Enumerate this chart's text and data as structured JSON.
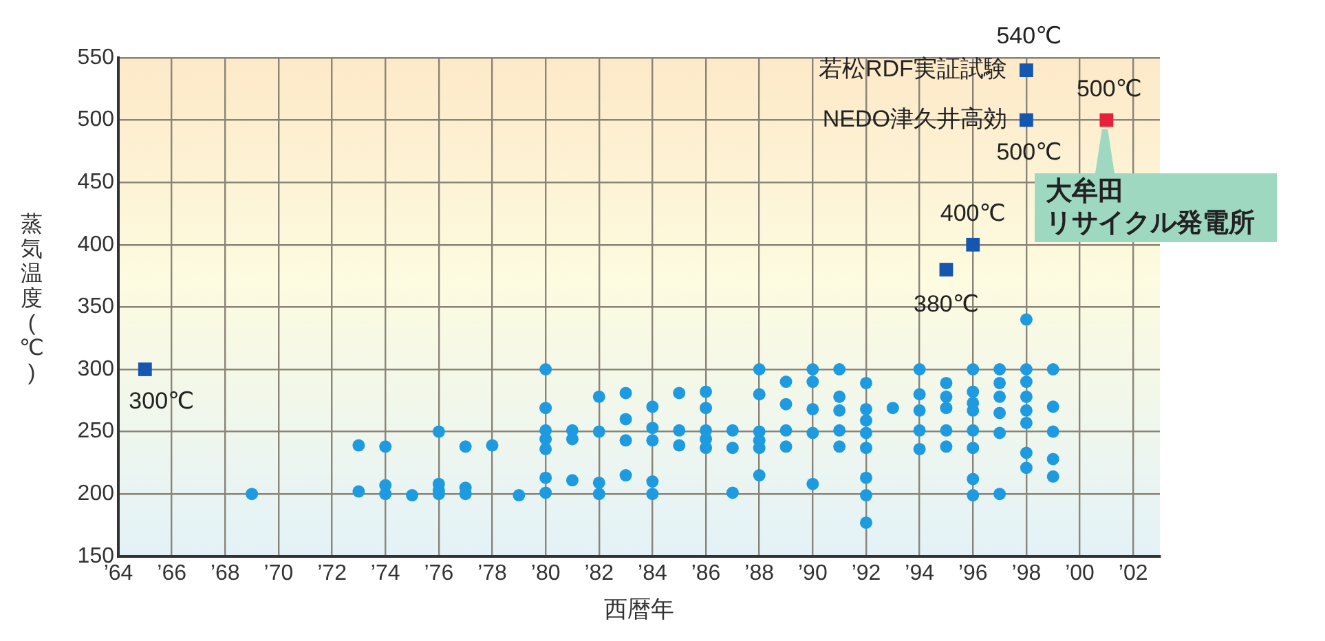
{
  "chart_data": {
    "type": "scatter",
    "xlabel": "西暦年",
    "ylabel": "蒸気温度(℃)",
    "xlim": [
      1964,
      2003
    ],
    "ylim": [
      150,
      550
    ],
    "xticks": [
      {
        "value": 1964,
        "label": "’64"
      },
      {
        "value": 1966,
        "label": "’66"
      },
      {
        "value": 1968,
        "label": "’68"
      },
      {
        "value": 1970,
        "label": "’70"
      },
      {
        "value": 1972,
        "label": "’72"
      },
      {
        "value": 1974,
        "label": "’74"
      },
      {
        "value": 1976,
        "label": "’76"
      },
      {
        "value": 1978,
        "label": "’78"
      },
      {
        "value": 1980,
        "label": "’80"
      },
      {
        "value": 1982,
        "label": "’82"
      },
      {
        "value": 1984,
        "label": "’84"
      },
      {
        "value": 1986,
        "label": "’86"
      },
      {
        "value": 1988,
        "label": "’88"
      },
      {
        "value": 1990,
        "label": "’90"
      },
      {
        "value": 1992,
        "label": "’92"
      },
      {
        "value": 1994,
        "label": "’94"
      },
      {
        "value": 1996,
        "label": "’96"
      },
      {
        "value": 1998,
        "label": "’98"
      },
      {
        "value": 2000,
        "label": "’00"
      },
      {
        "value": 2002,
        "label": "’02"
      }
    ],
    "yticks": [
      150,
      200,
      250,
      300,
      350,
      400,
      450,
      500,
      550
    ],
    "grid": true,
    "legend": false,
    "series": [
      {
        "marker": "circle",
        "color": "#1e9be0",
        "x": [
          1969,
          1973,
          1973,
          1974,
          1974,
          1974,
          1975,
          1976,
          1976,
          1976,
          1976,
          1977,
          1977,
          1977,
          1978,
          1979,
          1980,
          1980,
          1980,
          1980,
          1980,
          1980,
          1980,
          1981,
          1981,
          1981,
          1982,
          1982,
          1982,
          1982,
          1983,
          1983,
          1983,
          1983,
          1984,
          1984,
          1984,
          1984,
          1984,
          1985,
          1985,
          1985,
          1986,
          1986,
          1986,
          1986,
          1986,
          1987,
          1987,
          1987,
          1988,
          1988,
          1988,
          1988,
          1988,
          1988,
          1989,
          1989,
          1989,
          1989,
          1990,
          1990,
          1990,
          1990,
          1990,
          1991,
          1991,
          1991,
          1991,
          1991,
          1992,
          1992,
          1992,
          1992,
          1992,
          1992,
          1992,
          1992,
          1993,
          1994,
          1994,
          1994,
          1994,
          1994,
          1995,
          1995,
          1995,
          1995,
          1995,
          1996,
          1996,
          1996,
          1996,
          1996,
          1996,
          1996,
          1996,
          1997,
          1997,
          1997,
          1997,
          1997,
          1997,
          1998,
          1998,
          1998,
          1998,
          1998,
          1998,
          1998,
          1998,
          1999,
          1999,
          1999,
          1999,
          1999
        ],
        "values": [
          200,
          239,
          202,
          238,
          207,
          200,
          199,
          250,
          208,
          203,
          200,
          238,
          205,
          200,
          239,
          199,
          300,
          269,
          251,
          244,
          236,
          213,
          201,
          251,
          244,
          211,
          278,
          250,
          209,
          200,
          281,
          260,
          243,
          215,
          270,
          253,
          243,
          210,
          200,
          281,
          251,
          239,
          282,
          269,
          251,
          244,
          237,
          251,
          237,
          201,
          300,
          280,
          250,
          243,
          237,
          215,
          290,
          272,
          251,
          238,
          300,
          290,
          268,
          249,
          208,
          300,
          278,
          267,
          251,
          238,
          289,
          268,
          259,
          249,
          237,
          213,
          199,
          177,
          269,
          300,
          280,
          267,
          251,
          236,
          289,
          278,
          269,
          251,
          238,
          300,
          282,
          273,
          267,
          251,
          237,
          212,
          199,
          300,
          289,
          278,
          265,
          249,
          200,
          340,
          300,
          290,
          278,
          267,
          257,
          233,
          221,
          300,
          270,
          250,
          228,
          214
        ]
      },
      {
        "marker": "square",
        "color": "#1556b0",
        "x": [
          1965,
          1995,
          1996,
          1998,
          1998
        ],
        "values": [
          300,
          380,
          400,
          540,
          500
        ]
      },
      {
        "marker": "square",
        "color": "#e8213a",
        "x": [
          2001
        ],
        "values": [
          500
        ]
      }
    ],
    "annotations": [
      {
        "text": "540℃",
        "x": 1998,
        "y": 540
      },
      {
        "text": "若松RDF実証試験",
        "x": 1998,
        "y": 540
      },
      {
        "text": "NEDO津久井高効",
        "x": 1998,
        "y": 500
      },
      {
        "text": "500℃",
        "x": 1998,
        "y": 500
      },
      {
        "text": "500℃",
        "x": 2001,
        "y": 500
      },
      "大牟田",
      "リサイクル発電所",
      {
        "text": "400℃",
        "x": 1996,
        "y": 400
      },
      {
        "text": "380℃",
        "x": 1995,
        "y": 380
      },
      {
        "text": "300℃",
        "x": 1965,
        "y": 300
      }
    ]
  }
}
